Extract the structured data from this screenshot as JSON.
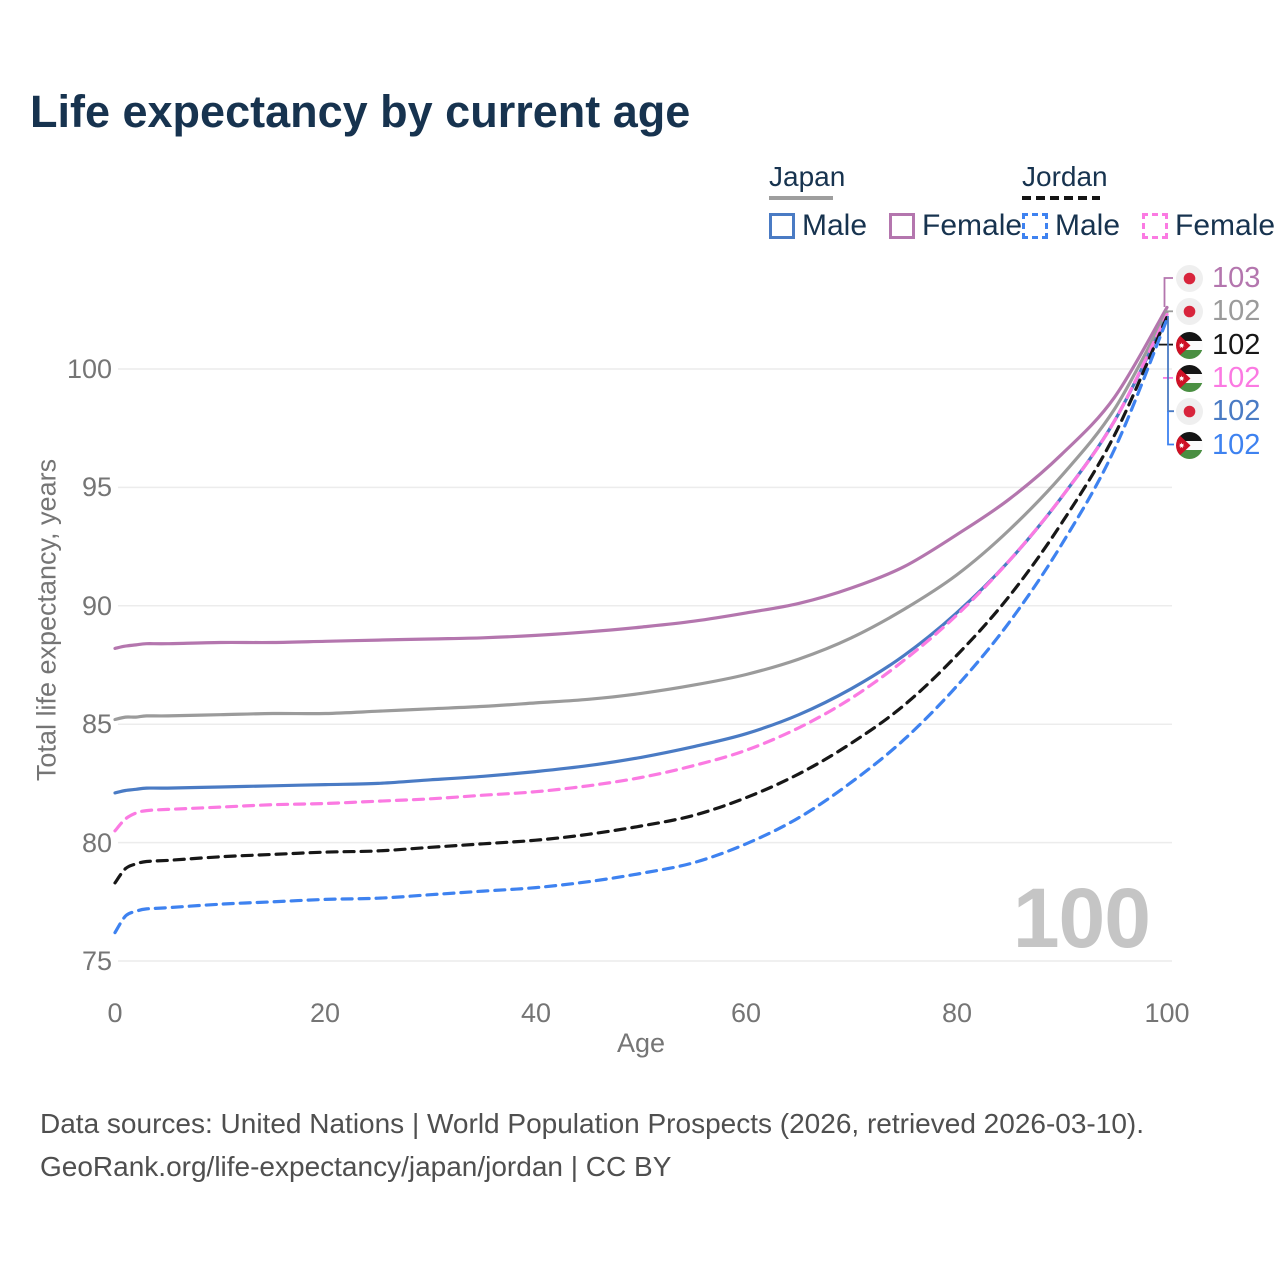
{
  "title": "Life expectancy by current age",
  "legend": {
    "japan": {
      "name": "Japan",
      "male": "Male",
      "female": "Female"
    },
    "jordan": {
      "name": "Jordan",
      "male": "Male",
      "female": "Female"
    }
  },
  "watermark": "100",
  "footer": {
    "line1": "Data sources: United Nations | World Population Prospects (2026, retrieved 2026-03-10).",
    "line2": "GeoRank.org/life-expectancy/japan/jordan | CC BY"
  },
  "colors": {
    "title_text": "#17334f",
    "axis_text": "#757575",
    "grid": "#ececec",
    "watermark": "#c5c5c5",
    "japan_female": "#b476ae",
    "japan_both": "#9b9b9b",
    "japan_male": "#4a7bc4",
    "jordan_female": "#fb7ae2",
    "jordan_both": "#171717",
    "jordan_male": "#3e82f0"
  },
  "chart_data": {
    "type": "line",
    "title": "Life expectancy by current age",
    "xlabel": "Age",
    "ylabel": "Total life expectancy, years",
    "xlim": [
      0,
      100
    ],
    "ylim": [
      75,
      100
    ],
    "xticks": [
      0,
      20,
      40,
      60,
      80,
      100
    ],
    "yticks": [
      75,
      80,
      85,
      90,
      95,
      100
    ],
    "grid": true,
    "legend_position": "top-right",
    "series": [
      {
        "name": "Japan Female",
        "country": "Japan",
        "sex": "Female",
        "style": "solid",
        "color": "#b476ae",
        "points": [
          [
            0,
            88.2
          ],
          [
            1,
            88.3
          ],
          [
            2,
            88.35
          ],
          [
            3,
            88.4
          ],
          [
            5,
            88.4
          ],
          [
            10,
            88.45
          ],
          [
            15,
            88.45
          ],
          [
            20,
            88.5
          ],
          [
            25,
            88.55
          ],
          [
            30,
            88.6
          ],
          [
            35,
            88.65
          ],
          [
            40,
            88.75
          ],
          [
            45,
            88.9
          ],
          [
            50,
            89.1
          ],
          [
            55,
            89.35
          ],
          [
            60,
            89.7
          ],
          [
            65,
            90.1
          ],
          [
            70,
            90.75
          ],
          [
            75,
            91.65
          ],
          [
            80,
            93.0
          ],
          [
            85,
            94.5
          ],
          [
            90,
            96.4
          ],
          [
            95,
            98.8
          ],
          [
            100,
            102.6
          ]
        ]
      },
      {
        "name": "Japan Both sexes",
        "country": "Japan",
        "sex": "Both",
        "style": "solid",
        "color": "#9b9b9b",
        "points": [
          [
            0,
            85.2
          ],
          [
            1,
            85.3
          ],
          [
            2,
            85.3
          ],
          [
            3,
            85.35
          ],
          [
            5,
            85.35
          ],
          [
            10,
            85.4
          ],
          [
            15,
            85.45
          ],
          [
            20,
            85.45
          ],
          [
            25,
            85.55
          ],
          [
            30,
            85.65
          ],
          [
            35,
            85.75
          ],
          [
            40,
            85.9
          ],
          [
            45,
            86.05
          ],
          [
            50,
            86.3
          ],
          [
            55,
            86.65
          ],
          [
            60,
            87.1
          ],
          [
            65,
            87.75
          ],
          [
            70,
            88.65
          ],
          [
            75,
            89.85
          ],
          [
            80,
            91.3
          ],
          [
            85,
            93.2
          ],
          [
            90,
            95.5
          ],
          [
            95,
            98.3
          ],
          [
            100,
            102.4
          ]
        ]
      },
      {
        "name": "Japan Male",
        "country": "Japan",
        "sex": "Male",
        "style": "solid",
        "color": "#4a7bc4",
        "points": [
          [
            0,
            82.1
          ],
          [
            1,
            82.2
          ],
          [
            2,
            82.25
          ],
          [
            3,
            82.3
          ],
          [
            5,
            82.3
          ],
          [
            10,
            82.35
          ],
          [
            15,
            82.4
          ],
          [
            20,
            82.45
          ],
          [
            25,
            82.5
          ],
          [
            30,
            82.65
          ],
          [
            35,
            82.8
          ],
          [
            40,
            83.0
          ],
          [
            45,
            83.25
          ],
          [
            50,
            83.6
          ],
          [
            55,
            84.05
          ],
          [
            60,
            84.6
          ],
          [
            65,
            85.4
          ],
          [
            70,
            86.5
          ],
          [
            75,
            87.9
          ],
          [
            80,
            89.7
          ],
          [
            85,
            91.9
          ],
          [
            90,
            94.6
          ],
          [
            95,
            97.8
          ],
          [
            100,
            102.2
          ]
        ]
      },
      {
        "name": "Jordan Female",
        "country": "Jordan",
        "sex": "Female",
        "style": "dashed",
        "color": "#fb7ae2",
        "points": [
          [
            0,
            80.5
          ],
          [
            1,
            81.0
          ],
          [
            2,
            81.25
          ],
          [
            3,
            81.35
          ],
          [
            5,
            81.4
          ],
          [
            10,
            81.5
          ],
          [
            15,
            81.6
          ],
          [
            20,
            81.65
          ],
          [
            25,
            81.75
          ],
          [
            30,
            81.85
          ],
          [
            35,
            82.0
          ],
          [
            40,
            82.15
          ],
          [
            45,
            82.4
          ],
          [
            50,
            82.75
          ],
          [
            55,
            83.25
          ],
          [
            60,
            83.9
          ],
          [
            65,
            84.85
          ],
          [
            70,
            86.1
          ],
          [
            75,
            87.7
          ],
          [
            80,
            89.6
          ],
          [
            85,
            91.9
          ],
          [
            90,
            94.6
          ],
          [
            95,
            97.8
          ],
          [
            100,
            102.3
          ]
        ]
      },
      {
        "name": "Jordan Both sexes",
        "country": "Jordan",
        "sex": "Both",
        "style": "dashed",
        "color": "#171717",
        "points": [
          [
            0,
            78.3
          ],
          [
            1,
            78.9
          ],
          [
            2,
            79.1
          ],
          [
            3,
            79.2
          ],
          [
            5,
            79.25
          ],
          [
            10,
            79.4
          ],
          [
            15,
            79.5
          ],
          [
            20,
            79.6
          ],
          [
            25,
            79.65
          ],
          [
            30,
            79.8
          ],
          [
            35,
            79.95
          ],
          [
            40,
            80.1
          ],
          [
            45,
            80.35
          ],
          [
            50,
            80.7
          ],
          [
            55,
            81.15
          ],
          [
            60,
            81.9
          ],
          [
            65,
            82.9
          ],
          [
            70,
            84.2
          ],
          [
            75,
            85.8
          ],
          [
            80,
            87.9
          ],
          [
            85,
            90.4
          ],
          [
            90,
            93.5
          ],
          [
            95,
            97.2
          ],
          [
            100,
            102.2
          ]
        ]
      },
      {
        "name": "Jordan Male",
        "country": "Jordan",
        "sex": "Male",
        "style": "dashed",
        "color": "#3e82f0",
        "points": [
          [
            0,
            76.2
          ],
          [
            1,
            76.9
          ],
          [
            2,
            77.1
          ],
          [
            3,
            77.2
          ],
          [
            5,
            77.25
          ],
          [
            10,
            77.4
          ],
          [
            15,
            77.5
          ],
          [
            20,
            77.6
          ],
          [
            25,
            77.65
          ],
          [
            30,
            77.8
          ],
          [
            35,
            77.95
          ],
          [
            40,
            78.1
          ],
          [
            45,
            78.35
          ],
          [
            50,
            78.7
          ],
          [
            55,
            79.15
          ],
          [
            60,
            79.95
          ],
          [
            65,
            81.05
          ],
          [
            70,
            82.55
          ],
          [
            75,
            84.35
          ],
          [
            80,
            86.6
          ],
          [
            85,
            89.3
          ],
          [
            90,
            92.6
          ],
          [
            95,
            96.6
          ],
          [
            100,
            102.1
          ]
        ]
      }
    ],
    "end_labels": [
      {
        "flag": "japan",
        "value": "103",
        "color": "#b476ae"
      },
      {
        "flag": "japan",
        "value": "102",
        "color": "#9b9b9b"
      },
      {
        "flag": "jordan",
        "value": "102",
        "color": "#171717"
      },
      {
        "flag": "jordan",
        "value": "102",
        "color": "#fb7ae2"
      },
      {
        "flag": "japan",
        "value": "102",
        "color": "#4a7bc4"
      },
      {
        "flag": "jordan",
        "value": "102",
        "color": "#3e82f0"
      }
    ]
  }
}
